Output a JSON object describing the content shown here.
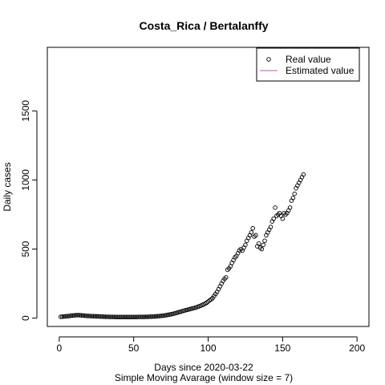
{
  "chart_data": {
    "type": "scatter",
    "title": "Costa_Rica / Bertalanffy",
    "xlabel": "Days since 2020-03-22",
    "xlabel_sub": "Simple Moving Avarage (window size = 7)",
    "ylabel": "Daily cases",
    "xlim": [
      -8,
      208
    ],
    "ylim": [
      -60,
      1960
    ],
    "xticks": [
      0,
      50,
      100,
      150,
      200
    ],
    "yticks": [
      0,
      500,
      1000,
      1500
    ],
    "grid": false,
    "legend_position": "top-right",
    "series": [
      {
        "name": "Real value",
        "marker": "open-circle",
        "color": "#000000",
        "x": [
          1,
          2,
          3,
          4,
          5,
          6,
          7,
          8,
          9,
          10,
          11,
          12,
          13,
          14,
          15,
          16,
          17,
          18,
          19,
          20,
          21,
          22,
          23,
          24,
          25,
          26,
          27,
          28,
          29,
          30,
          31,
          32,
          33,
          34,
          35,
          36,
          37,
          38,
          39,
          40,
          41,
          42,
          43,
          44,
          45,
          46,
          47,
          48,
          49,
          50,
          51,
          52,
          53,
          54,
          55,
          56,
          57,
          58,
          59,
          60,
          61,
          62,
          63,
          64,
          65,
          66,
          67,
          68,
          69,
          70,
          71,
          72,
          73,
          74,
          75,
          76,
          77,
          78,
          79,
          80,
          81,
          82,
          83,
          84,
          85,
          86,
          87,
          88,
          89,
          90,
          91,
          92,
          93,
          94,
          95,
          96,
          97,
          98,
          99,
          100,
          101,
          102,
          103,
          104,
          105,
          106,
          107,
          108,
          109,
          110,
          111,
          112,
          113,
          114,
          115,
          116,
          117,
          118,
          119,
          120,
          121,
          122,
          123,
          124,
          125,
          126,
          127,
          128,
          129,
          130,
          131,
          132,
          133,
          134,
          135,
          136,
          137,
          138,
          139,
          140,
          141,
          142,
          143,
          144,
          145,
          146,
          147,
          148,
          149,
          150,
          151,
          152,
          153,
          154,
          155,
          156,
          157,
          158,
          159,
          160,
          161,
          162,
          163,
          164
        ],
        "y": [
          10,
          11,
          12,
          13,
          14,
          15,
          16,
          18,
          19,
          20,
          21,
          22,
          22,
          21,
          20,
          19,
          18,
          17,
          16,
          16,
          15,
          15,
          14,
          14,
          13,
          13,
          12,
          12,
          11,
          11,
          10,
          10,
          10,
          9,
          9,
          9,
          9,
          8,
          8,
          8,
          8,
          8,
          8,
          8,
          8,
          8,
          8,
          8,
          8,
          8,
          8,
          8,
          9,
          9,
          9,
          9,
          9,
          10,
          10,
          10,
          11,
          11,
          12,
          12,
          13,
          14,
          15,
          16,
          17,
          18,
          20,
          22,
          24,
          26,
          28,
          30,
          33,
          36,
          39,
          42,
          45,
          48,
          52,
          55,
          58,
          60,
          63,
          66,
          69,
          72,
          75,
          78,
          82,
          86,
          90,
          95,
          100,
          105,
          112,
          120,
          128,
          136,
          145,
          160,
          175,
          190,
          210,
          230,
          250,
          270,
          285,
          295,
          350,
          360,
          375,
          400,
          420,
          440,
          450,
          470,
          490,
          500,
          490,
          510,
          530,
          560,
          580,
          600,
          620,
          650,
          590,
          600,
          520,
          540,
          510,
          500,
          530,
          560,
          600,
          620,
          640,
          660,
          700,
          720,
          800,
          740,
          750,
          760,
          740,
          720,
          760,
          750,
          760,
          780,
          800,
          850,
          870,
          900,
          940,
          960,
          980,
          1000,
          1020,
          1040
        ]
      },
      {
        "name": "Estimated value",
        "marker": "line",
        "color": "#aa66aa",
        "x": [],
        "y": []
      }
    ]
  }
}
